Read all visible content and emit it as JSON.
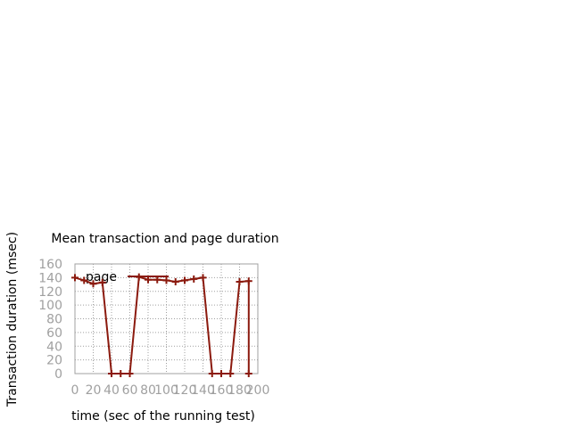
{
  "chart_data": {
    "type": "line",
    "title": "Mean transaction and page duration",
    "xlabel": "time (sec of the running test)",
    "ylabel": "Transaction duration (msec)",
    "xlim": [
      0,
      200
    ],
    "ylim": [
      0,
      160
    ],
    "xticks": [
      "0",
      "20",
      "40",
      "60",
      "80",
      "100",
      "120",
      "140",
      "160",
      "180",
      "200"
    ],
    "yticks": [
      "0",
      "20",
      "40",
      "60",
      "80",
      "100",
      "120",
      "140",
      "160"
    ],
    "grid": true,
    "legend_position": "top-left",
    "series": [
      {
        "name": "page",
        "color": "#8b1a0e",
        "points": [
          [
            0,
            140
          ],
          [
            10,
            136
          ],
          [
            20,
            131
          ],
          [
            30,
            133
          ],
          [
            40,
            0
          ],
          [
            50,
            0
          ],
          [
            60,
            0
          ],
          [
            70,
            141
          ],
          [
            80,
            137
          ],
          [
            90,
            137
          ],
          [
            100,
            136
          ],
          [
            110,
            134
          ],
          [
            120,
            136
          ],
          [
            130,
            138
          ],
          [
            140,
            140
          ],
          [
            150,
            0
          ],
          [
            160,
            0
          ],
          [
            170,
            0
          ],
          [
            180,
            134
          ],
          [
            190,
            135
          ],
          [
            190,
            0
          ]
        ]
      }
    ]
  }
}
